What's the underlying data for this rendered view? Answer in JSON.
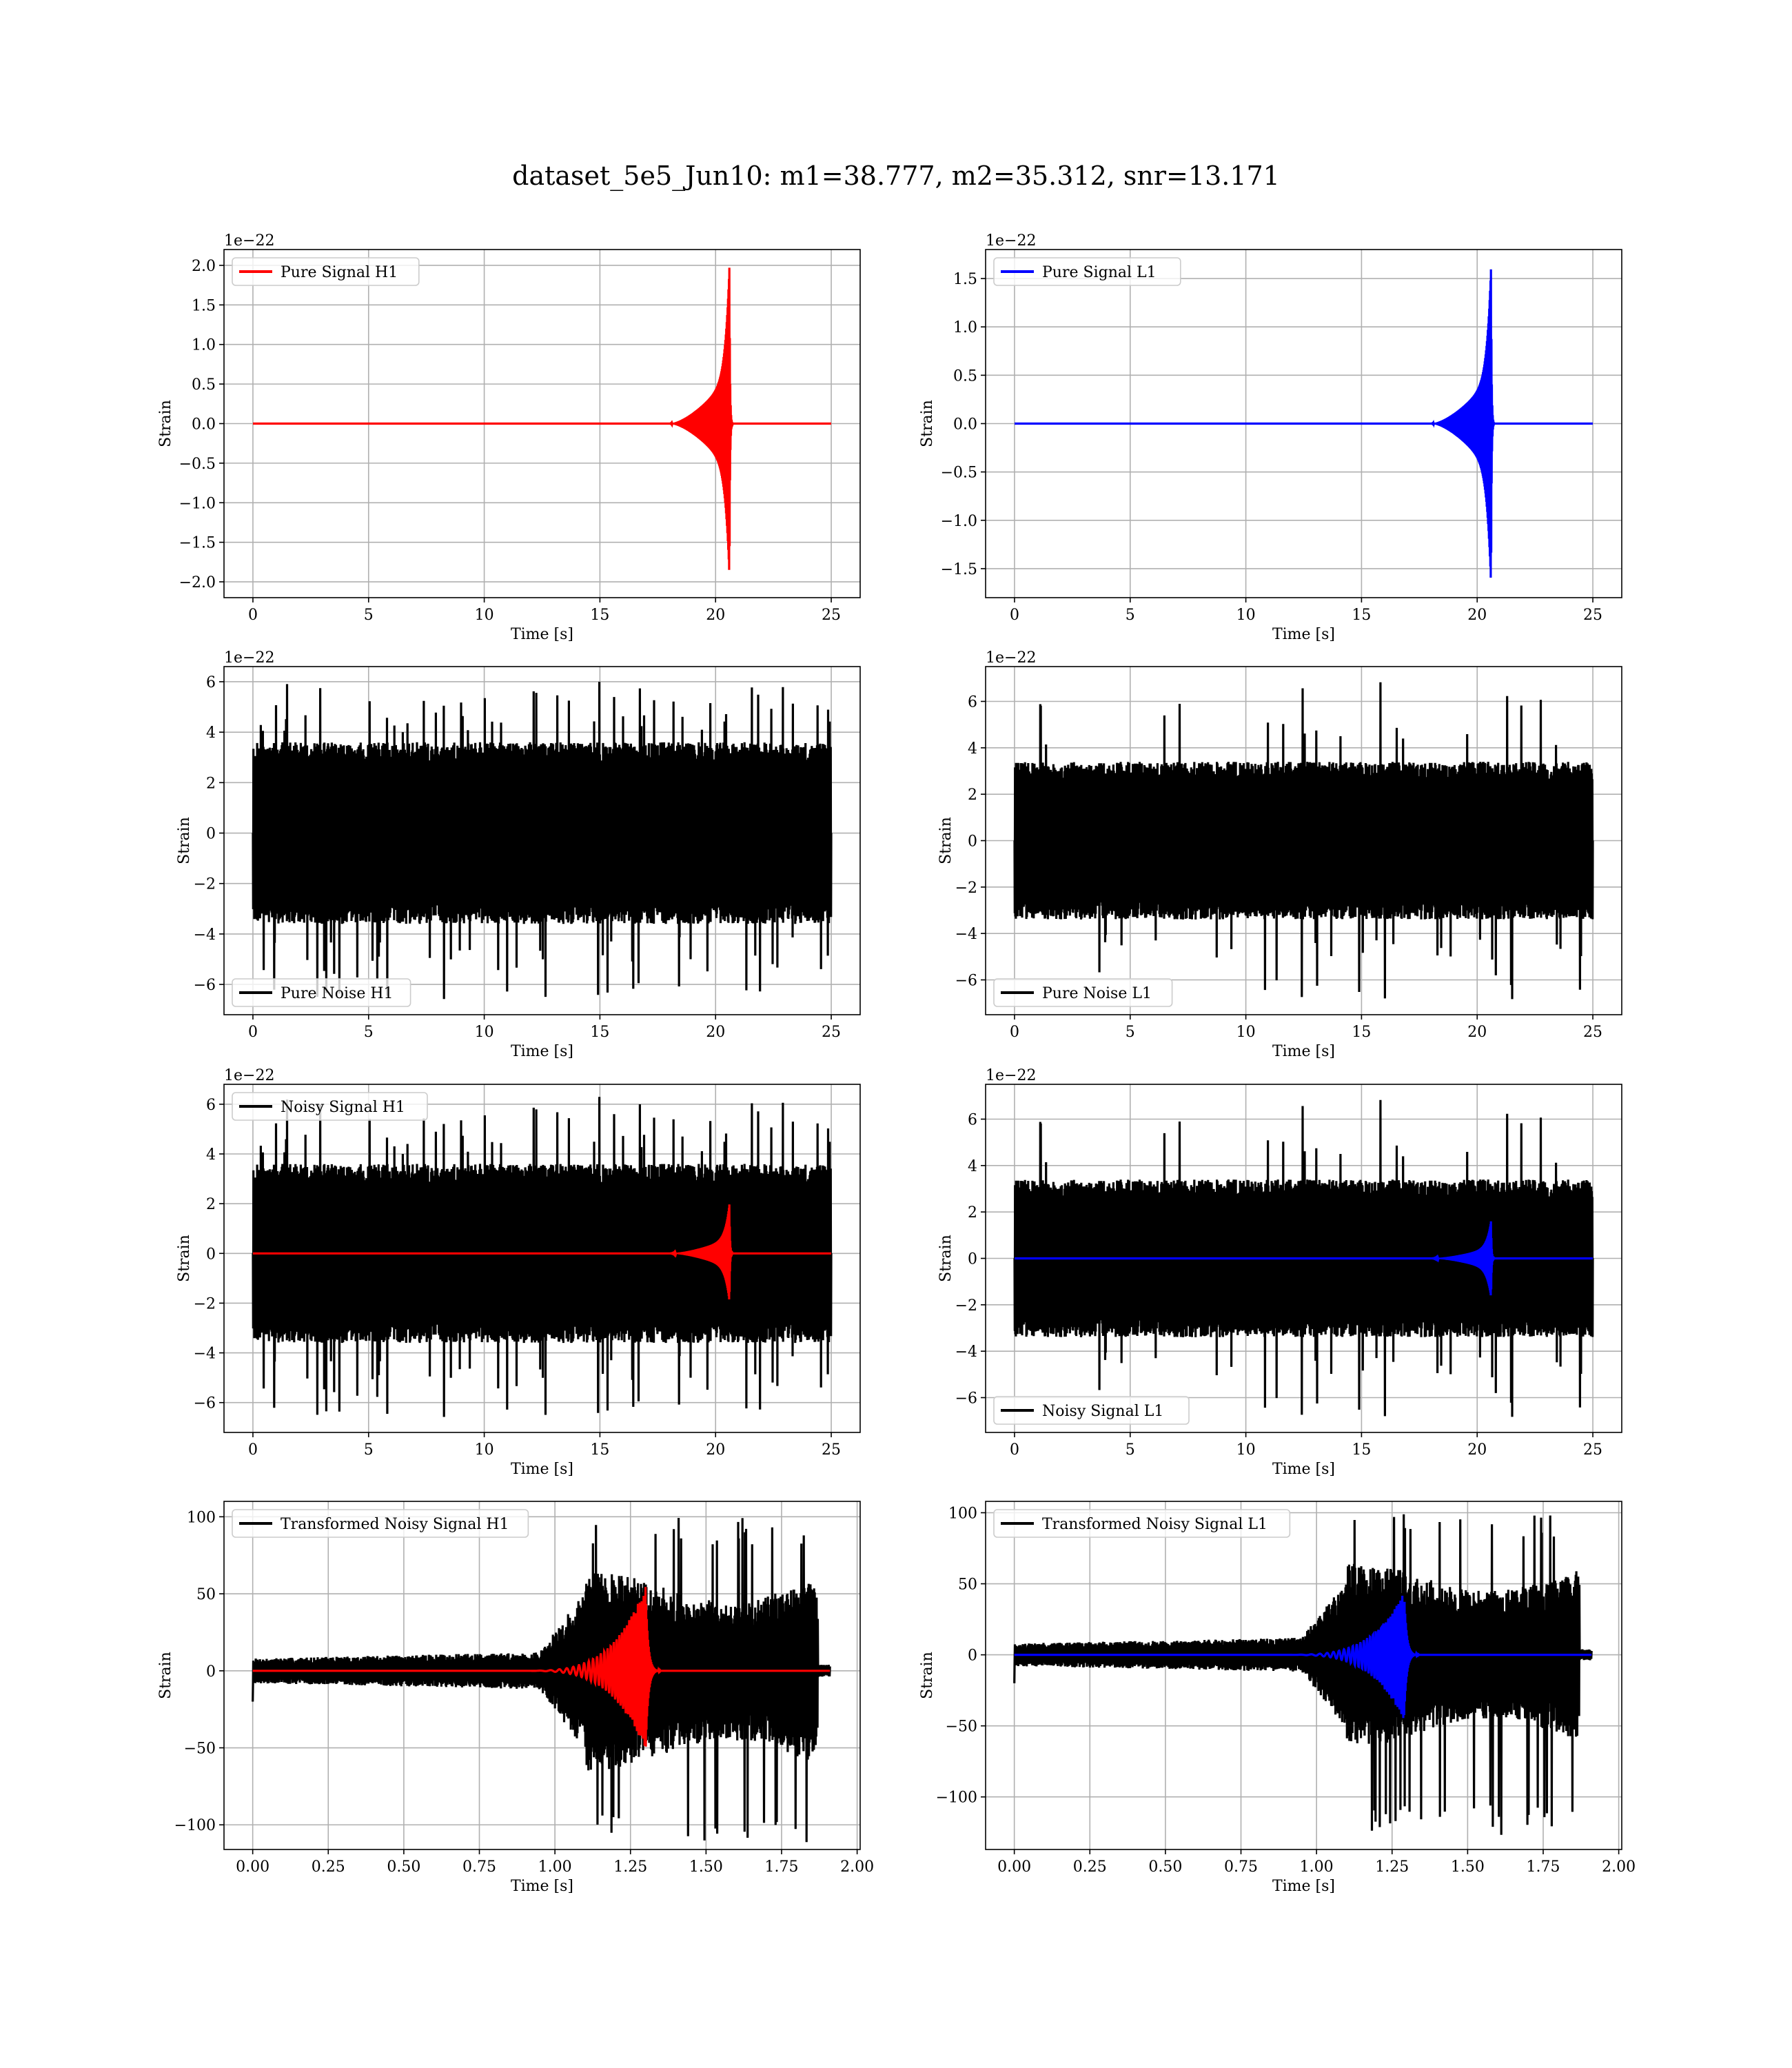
{
  "figure": {
    "title": "dataset_5e5_Jun10: m1=38.777, m2=35.312, snr=13.171"
  },
  "chart_data": [
    {
      "type": "line",
      "legend": [
        "Pure Signal H1"
      ],
      "legend_loc": "upper-left",
      "xlabel": "Time [s]",
      "ylabel": "Strain",
      "y_offset_text": "1e−22",
      "xlim": [
        -1.25,
        26.25
      ],
      "ylim": [
        -2.2,
        2.2
      ],
      "xticks": [
        0,
        5,
        10,
        15,
        20,
        25
      ],
      "yticks": [
        -2.0,
        -1.5,
        -1.0,
        -0.5,
        0.0,
        0.5,
        1.0,
        1.5,
        2.0
      ],
      "ytick_labels": [
        "−2.0",
        "−1.5",
        "−1.0",
        "−0.5",
        "0.0",
        "0.5",
        "1.0",
        "1.5",
        "2.0"
      ],
      "grid": true,
      "series": [
        {
          "name": "Pure Signal H1",
          "color": "#ff0000",
          "kind": "chirp",
          "x_start": 0,
          "x_end": 25,
          "onset": 18.0,
          "merger": 20.6,
          "plateau_amp": 0.6,
          "peak_amp": 2.0,
          "peak_neg": -1.95
        }
      ]
    },
    {
      "type": "line",
      "legend": [
        "Pure Signal L1"
      ],
      "legend_loc": "upper-left",
      "xlabel": "Time [s]",
      "ylabel": "Strain",
      "y_offset_text": "1e−22",
      "xlim": [
        -1.25,
        26.25
      ],
      "ylim": [
        -1.8,
        1.8
      ],
      "xticks": [
        0,
        5,
        10,
        15,
        20,
        25
      ],
      "yticks": [
        -1.5,
        -1.0,
        -0.5,
        0.0,
        0.5,
        1.0,
        1.5
      ],
      "ytick_labels": [
        "−1.5",
        "−1.0",
        "−0.5",
        "0.0",
        "0.5",
        "1.0",
        "1.5"
      ],
      "grid": true,
      "series": [
        {
          "name": "Pure Signal L1",
          "color": "#0000ff",
          "kind": "chirp",
          "x_start": 0,
          "x_end": 25,
          "onset": 18.0,
          "merger": 20.6,
          "plateau_amp": 0.48,
          "peak_amp": 1.62,
          "peak_neg": -1.68
        }
      ]
    },
    {
      "type": "line",
      "legend": [
        "Pure Noise H1"
      ],
      "legend_loc": "lower-left",
      "xlabel": "Time [s]",
      "ylabel": "Strain",
      "y_offset_text": "1e−22",
      "xlim": [
        -1.25,
        26.25
      ],
      "ylim": [
        -7.2,
        6.6
      ],
      "xticks": [
        0,
        5,
        10,
        15,
        20,
        25
      ],
      "yticks": [
        -6,
        -4,
        -2,
        0,
        2,
        4,
        6
      ],
      "ytick_labels": [
        "−6",
        "−4",
        "−2",
        "0",
        "2",
        "4",
        "6"
      ],
      "grid": true,
      "series": [
        {
          "name": "Pure Noise H1",
          "color": "#000000",
          "kind": "noise",
          "x_start": 0,
          "x_end": 25,
          "band": 3.6,
          "spike_max": 6.0,
          "spike_min": -6.6,
          "seed": 11
        }
      ]
    },
    {
      "type": "line",
      "legend": [
        "Pure Noise L1"
      ],
      "legend_loc": "lower-left",
      "xlabel": "Time [s]",
      "ylabel": "Strain",
      "y_offset_text": "1e−22",
      "xlim": [
        -1.25,
        26.25
      ],
      "ylim": [
        -7.5,
        7.5
      ],
      "xticks": [
        0,
        5,
        10,
        15,
        20,
        25
      ],
      "yticks": [
        -6,
        -4,
        -2,
        0,
        2,
        4,
        6
      ],
      "ytick_labels": [
        "−6",
        "−4",
        "−2",
        "0",
        "2",
        "4",
        "6"
      ],
      "grid": true,
      "series": [
        {
          "name": "Pure Noise L1",
          "color": "#000000",
          "kind": "noise",
          "x_start": 0,
          "x_end": 25,
          "band": 3.4,
          "spike_max": 6.9,
          "spike_min": -6.9,
          "seed": 29
        }
      ]
    },
    {
      "type": "line",
      "legend": [
        "Noisy Signal H1"
      ],
      "legend_loc": "upper-left",
      "xlabel": "Time [s]",
      "ylabel": "Strain",
      "y_offset_text": "1e−22",
      "xlim": [
        -1.25,
        26.25
      ],
      "ylim": [
        -7.2,
        6.8
      ],
      "xticks": [
        0,
        5,
        10,
        15,
        20,
        25
      ],
      "yticks": [
        -6,
        -4,
        -2,
        0,
        2,
        4,
        6
      ],
      "ytick_labels": [
        "−6",
        "−4",
        "−2",
        "0",
        "2",
        "4",
        "6"
      ],
      "grid": true,
      "series": [
        {
          "name": "Noisy Signal H1",
          "color": "#000000",
          "kind": "noise",
          "x_start": 0,
          "x_end": 25,
          "band": 3.6,
          "spike_max": 6.3,
          "spike_min": -6.6,
          "seed": 11
        },
        {
          "color": "#ff0000",
          "kind": "chirp",
          "x_start": 0,
          "x_end": 25,
          "onset": 18.0,
          "merger": 20.6,
          "plateau_amp": 0.6,
          "peak_amp": 2.0,
          "peak_neg": -1.95
        }
      ]
    },
    {
      "type": "line",
      "legend": [
        "Noisy Signal L1"
      ],
      "legend_loc": "lower-left",
      "xlabel": "Time [s]",
      "ylabel": "Strain",
      "y_offset_text": "1e−22",
      "xlim": [
        -1.25,
        26.25
      ],
      "ylim": [
        -7.5,
        7.5
      ],
      "xticks": [
        0,
        5,
        10,
        15,
        20,
        25
      ],
      "yticks": [
        -6,
        -4,
        -2,
        0,
        2,
        4,
        6
      ],
      "ytick_labels": [
        "−6",
        "−4",
        "−2",
        "0",
        "2",
        "4",
        "6"
      ],
      "grid": true,
      "series": [
        {
          "name": "Noisy Signal L1",
          "color": "#000000",
          "kind": "noise",
          "x_start": 0,
          "x_end": 25,
          "band": 3.4,
          "spike_max": 6.9,
          "spike_min": -6.9,
          "seed": 29
        },
        {
          "color": "#0000ff",
          "kind": "chirp",
          "x_start": 0,
          "x_end": 25,
          "onset": 18.0,
          "merger": 20.6,
          "plateau_amp": 0.48,
          "peak_amp": 1.62,
          "peak_neg": -1.68
        }
      ]
    },
    {
      "type": "line",
      "legend": [
        "Transformed Noisy Signal H1"
      ],
      "legend_loc": "upper-left",
      "xlabel": "Time [s]",
      "ylabel": "Strain",
      "y_offset_text": "",
      "xlim": [
        -0.095,
        2.01
      ],
      "ylim": [
        -116,
        110
      ],
      "xticks": [
        0.0,
        0.25,
        0.5,
        0.75,
        1.0,
        1.25,
        1.5,
        1.75,
        2.0
      ],
      "xtick_labels": [
        "0.00",
        "0.25",
        "0.50",
        "0.75",
        "1.00",
        "1.25",
        "1.50",
        "1.75",
        "2.00"
      ],
      "yticks": [
        -100,
        -50,
        0,
        50,
        100
      ],
      "ytick_labels": [
        "−100",
        "−50",
        "0",
        "50",
        "100"
      ],
      "grid": true,
      "series": [
        {
          "name": "Transformed Noisy Signal H1",
          "color": "#000000",
          "kind": "tnoise",
          "x_start": 0,
          "x_end": 1.91,
          "seed": 7,
          "max": 100,
          "min": -112
        },
        {
          "color": "#ff0000",
          "kind": "tchirp",
          "x_start": 0,
          "x_end": 1.91,
          "onset": 0.85,
          "merger": 1.3,
          "peak_amp": 55,
          "peak_neg": -52
        }
      ]
    },
    {
      "type": "line",
      "legend": [
        "Transformed Noisy Signal L1"
      ],
      "legend_loc": "upper-left",
      "xlabel": "Time [s]",
      "ylabel": "Strain",
      "y_offset_text": "",
      "xlim": [
        -0.095,
        2.01
      ],
      "ylim": [
        -137,
        108
      ],
      "xticks": [
        0.0,
        0.25,
        0.5,
        0.75,
        1.0,
        1.25,
        1.5,
        1.75,
        2.0
      ],
      "xtick_labels": [
        "0.00",
        "0.25",
        "0.50",
        "0.75",
        "1.00",
        "1.25",
        "1.50",
        "1.75",
        "2.00"
      ],
      "yticks": [
        -100,
        -50,
        0,
        50,
        100
      ],
      "ytick_labels": [
        "−100",
        "−50",
        "0",
        "50",
        "100"
      ],
      "grid": true,
      "series": [
        {
          "name": "Transformed Noisy Signal L1",
          "color": "#000000",
          "kind": "tnoise",
          "x_start": 0,
          "x_end": 1.91,
          "seed": 19,
          "max": 99,
          "min": -127
        },
        {
          "color": "#0000ff",
          "kind": "tchirp",
          "x_start": 0,
          "x_end": 1.91,
          "onset": 0.85,
          "merger": 1.29,
          "peak_amp": 44,
          "peak_neg": -46
        }
      ]
    }
  ]
}
